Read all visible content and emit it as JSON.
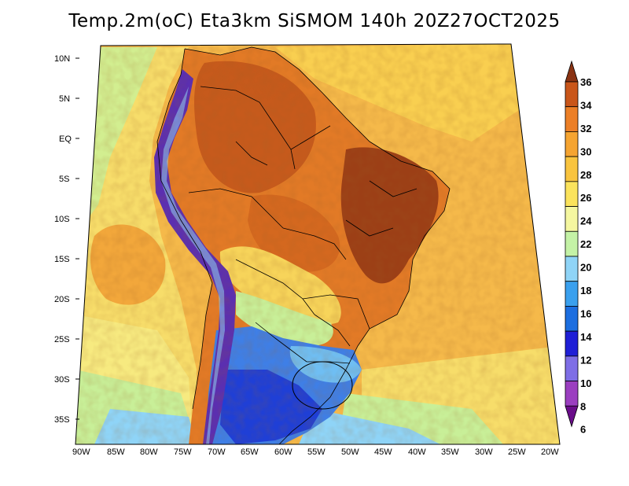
{
  "title": "Temp.2m(oC) Eta3km SiSMOM 140h 20Z27OCT2025",
  "lat_labels": [
    "10N",
    "5N",
    "EQ",
    "5S",
    "10S",
    "15S",
    "20S",
    "25S",
    "30S",
    "35S"
  ],
  "lon_labels": [
    "90W",
    "85W",
    "80W",
    "75W",
    "70W",
    "65W",
    "60W",
    "55W",
    "50W",
    "45W",
    "40W",
    "35W",
    "30W",
    "25W",
    "20W"
  ],
  "colorbar": {
    "labels": [
      "6",
      "8",
      "10",
      "12",
      "14",
      "16",
      "18",
      "20",
      "22",
      "24",
      "26",
      "28",
      "30",
      "32",
      "34",
      "36"
    ],
    "colors": [
      "#6a0d8a",
      "#9b3fc0",
      "#7e6ee6",
      "#1f1fd6",
      "#1c6ee0",
      "#3aa0ee",
      "#8fd4f7",
      "#c4f2a6",
      "#f5f7a0",
      "#fbe35c",
      "#f9c43f",
      "#f5a431",
      "#ec7f27",
      "#c9561a",
      "#8a3313"
    ]
  },
  "colors": {
    "ocean_warm": "#f5b94a",
    "ocean_mid": "#f7dd6a",
    "ocean_cool": "#c8ef98",
    "land_hot": "#d96d23",
    "land_very_hot": "#8a3a15",
    "andes": "#5b2fb0",
    "south": "#3f7fe6",
    "border": "#000000"
  }
}
